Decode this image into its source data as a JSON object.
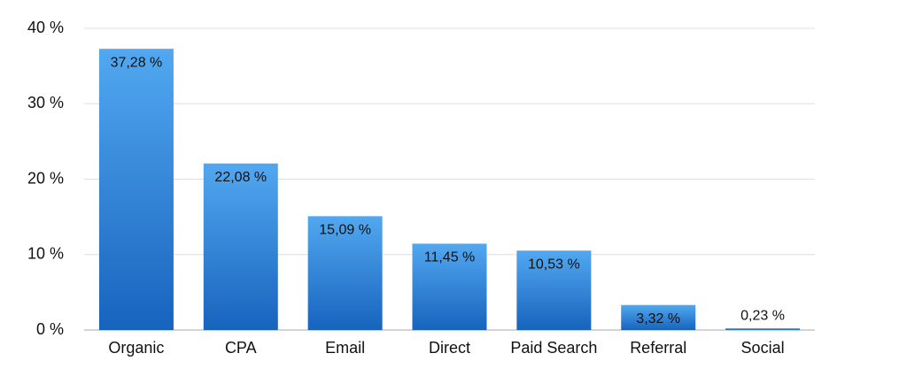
{
  "chart_data": {
    "type": "bar",
    "categories": [
      "Organic",
      "CPA",
      "Email",
      "Direct",
      "Paid Search",
      "Referral",
      "Social"
    ],
    "values": [
      37.28,
      22.08,
      15.09,
      11.45,
      10.53,
      3.32,
      0.23
    ],
    "value_labels": [
      "37,28 %",
      "22,08 %",
      "15,09 %",
      "11,45 %",
      "10,53 %",
      "3,32 %",
      "0,23 %"
    ],
    "color": "#2a7ad6",
    "ylim": [
      0,
      40
    ],
    "yticks": [
      {
        "value": 0,
        "label": "0 %"
      },
      {
        "value": 10,
        "label": "10 %"
      },
      {
        "value": 20,
        "label": "20 %"
      },
      {
        "value": 30,
        "label": "30 %"
      },
      {
        "value": 40,
        "label": "40 %"
      }
    ],
    "grid": true
  }
}
